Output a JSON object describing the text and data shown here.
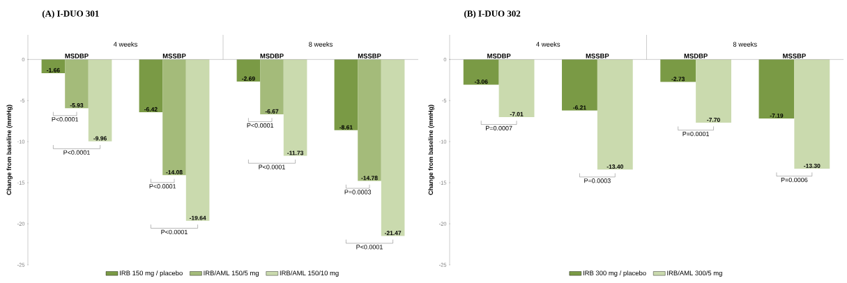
{
  "chart_data": [
    {
      "type": "bar",
      "title": "(A)  I-DUO 301",
      "ylabel": "Change from baseline (mmHg)",
      "categories": [
        "MSDBP",
        "MSSBP",
        "MSDBP",
        "MSSBP"
      ],
      "series": [
        {
          "name": "IRB 150 mg / placebo",
          "color": "#7a9a45",
          "values": [
            -1.66,
            -6.42,
            -2.69,
            -8.61
          ],
          "value_labels": [
            "-1.66",
            "-6.42",
            "-2.69",
            "-8.61"
          ]
        },
        {
          "name": "IRB/AML 150/5 mg",
          "color": "#a4bb7a",
          "values": [
            -5.93,
            -14.08,
            -6.67,
            -14.78
          ],
          "value_labels": [
            "-5.93",
            "-14.08",
            "-6.67",
            "-14.78"
          ]
        },
        {
          "name": "IRB/AML 150/10 mg",
          "color": "#cadaae",
          "values": [
            -9.96,
            -19.64,
            -11.73,
            -21.47
          ],
          "value_labels": [
            "-9.96",
            "-19.64",
            "-11.73",
            "-21.47"
          ]
        }
      ],
      "ylim": [
        -25,
        3
      ],
      "yticks": [
        0,
        -5,
        -10,
        -15,
        -20,
        -25
      ],
      "legend": "bottom",
      "annotations": [
        "4 weeks",
        "8 weeks",
        "P<0.0001",
        "P<0.0001",
        "P<0.0001",
        "P<0.0001",
        "P<0.0001",
        "P<0.0001",
        "P=0.0003",
        "P<0.0001"
      ]
    },
    {
      "type": "bar",
      "title": "(B) I-DUO 302",
      "ylabel": "Change from baseline (mmHg)",
      "categories": [
        "MSDBP",
        "MSSBP",
        "MSDBP",
        "MSSBP"
      ],
      "series": [
        {
          "name": "IRB 300 mg / placebo",
          "color": "#7a9a45",
          "values": [
            -3.06,
            -6.21,
            -2.73,
            -7.19
          ],
          "value_labels": [
            "-3.06",
            "-6.21",
            "-2.73",
            "-7.19"
          ]
        },
        {
          "name": "IRB/AML 300/5 mg",
          "color": "#cadaae",
          "values": [
            -7.01,
            -13.4,
            -7.7,
            -13.3
          ],
          "value_labels": [
            "-7.01",
            "-13.40",
            "-7.70",
            "-13.30"
          ]
        }
      ],
      "ylim": [
        -25,
        3
      ],
      "yticks": [
        0,
        -5,
        -10,
        -15,
        -20,
        -25
      ],
      "legend": "bottom",
      "annotations": [
        "4 weeks",
        "8 weeks",
        "P=0.0007",
        "P=0.0003",
        "P=0.0001",
        "P=0.0006"
      ]
    }
  ]
}
